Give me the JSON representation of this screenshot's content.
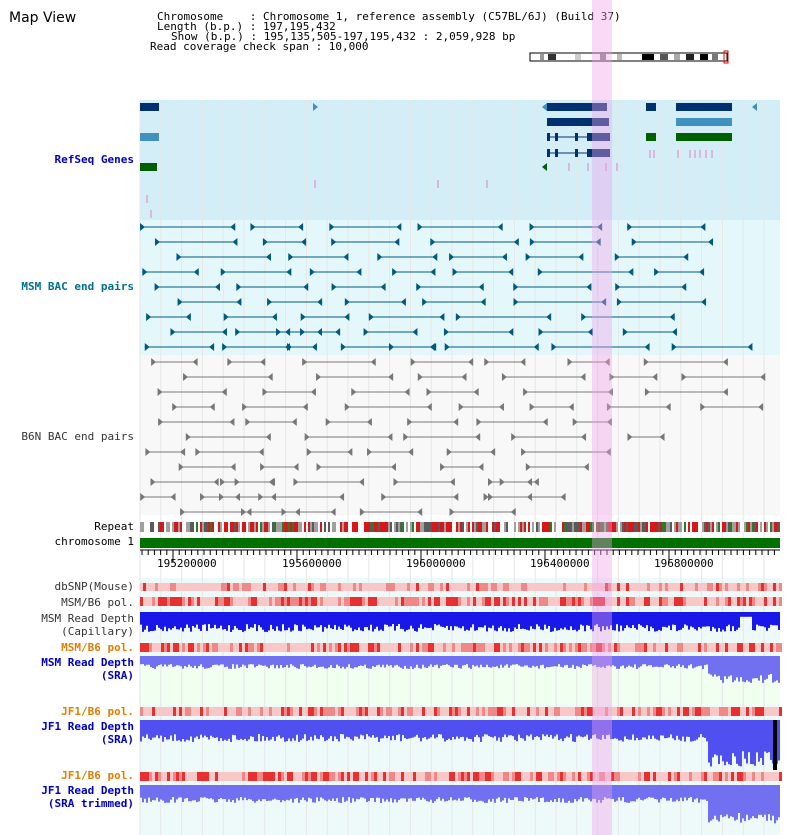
{
  "page": {
    "title": "Map View",
    "info": {
      "chromosome_line": "Chromosome    : Chromosome 1, reference assembly (C57BL/6J) (Build 37)",
      "length_line": "Length (b.p.) : 197,195,432",
      "show_line": "Show (b.p.) : 195,135,505-197,195,432 : 2,059,928 bp",
      "coverage_line": "Read coverage check span : 10,000"
    }
  },
  "tracks": {
    "refseq": "RefSeq Genes",
    "msm_bac": "MSM BAC end pairs",
    "b6n_bac": "B6N BAC end pairs",
    "repeat": "Repeat",
    "chromosome": "chromosome 1",
    "dbsnp": "dbSNP(Mouse)",
    "msm_b6_pol_1": "MSM/B6 pol.",
    "msm_depth_cap_1": "MSM Read Depth",
    "msm_depth_cap_2": "(Capillary)",
    "msm_b6_pol_2": "MSM/B6 pol.",
    "msm_depth_sra_1": "MSM Read Depth",
    "msm_depth_sra_2": "(SRA)",
    "jf1_b6_pol_1": "JF1/B6 pol.",
    "jf1_depth_sra_1": "JF1 Read Depth",
    "jf1_depth_sra_2": "(SRA)",
    "jf1_b6_pol_2": "JF1/B6 pol.",
    "jf1_depth_trim_1": "JF1 Read Depth",
    "jf1_depth_trim_2": "(SRA trimmed)"
  },
  "axis": {
    "ticks": [
      "195200000",
      "195600000",
      "196000000",
      "196400000",
      "196800000"
    ]
  },
  "colors": {
    "refseq_bg": "#d4eef8",
    "msm_bac_bg": "#e4f8fc",
    "highlight": "#f8d8f4",
    "chromosome_bar": "#007000",
    "depth_capillary": "#1818e8",
    "depth_sra": "#7070f0",
    "pol_strong": "#e83030",
    "pol_light": "#f8c8c8"
  }
}
